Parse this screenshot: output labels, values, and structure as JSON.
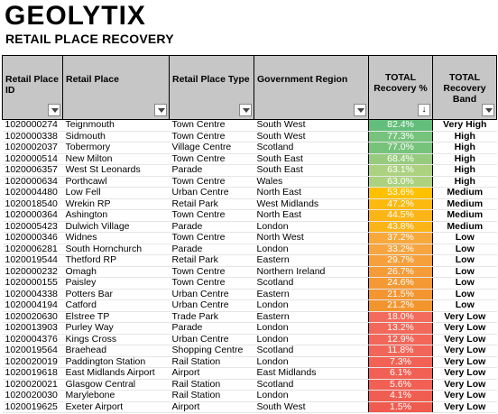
{
  "brand": {
    "logo_text": "GEOLYTIX"
  },
  "page": {
    "subtitle": "RETAIL PLACE RECOVERY"
  },
  "table": {
    "headers": [
      {
        "label": "Retail Place ID",
        "control": "filter"
      },
      {
        "label": "Retail Place",
        "control": "filter"
      },
      {
        "label": "Retail Place Type",
        "control": "filter"
      },
      {
        "label": "Government Region",
        "control": "filter"
      },
      {
        "label": "TOTAL Recovery %",
        "control": "sort-desc"
      },
      {
        "label": "TOTAL Recovery Band",
        "control": "filter"
      }
    ],
    "rows": [
      {
        "id": "1020000274",
        "place": "Teignmouth",
        "type": "Town Centre",
        "region": "South West",
        "pct": "82.4%",
        "band": "Very High",
        "color": "#63be7b"
      },
      {
        "id": "1020000338",
        "place": "Sidmouth",
        "type": "Town Centre",
        "region": "South West",
        "pct": "77.3%",
        "band": "High",
        "color": "#75c37c"
      },
      {
        "id": "1020002037",
        "place": "Tobermory",
        "type": "Village Centre",
        "region": "Scotland",
        "pct": "77.0%",
        "band": "High",
        "color": "#76c37c"
      },
      {
        "id": "1020000514",
        "place": "New Milton",
        "type": "Town Centre",
        "region": "South East",
        "pct": "68.4%",
        "band": "High",
        "color": "#97cc7e"
      },
      {
        "id": "1020006357",
        "place": "West St Leonards",
        "type": "Parade",
        "region": "South East",
        "pct": "63.1%",
        "band": "High",
        "color": "#acd27f"
      },
      {
        "id": "1020000634",
        "place": "Porthcawl",
        "type": "Town Centre",
        "region": "Wales",
        "pct": "63.0%",
        "band": "High",
        "color": "#acd27f"
      },
      {
        "id": "1020004480",
        "place": "Low Fell",
        "type": "Urban Centre",
        "region": "North East",
        "pct": "53.6%",
        "band": "Medium",
        "color": "#ffc000"
      },
      {
        "id": "1020018540",
        "place": "Wrekin RP",
        "type": "Retail Park",
        "region": "West Midlands",
        "pct": "47.2%",
        "band": "Medium",
        "color": "#fcb910"
      },
      {
        "id": "1020000364",
        "place": "Ashington",
        "type": "Town Centre",
        "region": "North East",
        "pct": "44.5%",
        "band": "Medium",
        "color": "#fbb516"
      },
      {
        "id": "1020005423",
        "place": "Dulwich Village",
        "type": "Parade",
        "region": "London",
        "pct": "43.8%",
        "band": "Medium",
        "color": "#fbb418"
      },
      {
        "id": "1020000346",
        "place": "Widnes",
        "type": "Town Centre",
        "region": "North West",
        "pct": "37.2%",
        "band": "Low",
        "color": "#f8a93c"
      },
      {
        "id": "1020006281",
        "place": "South Hornchurch",
        "type": "Parade",
        "region": "London",
        "pct": "33.2%",
        "band": "Low",
        "color": "#f7a540"
      },
      {
        "id": "1020019544",
        "place": "Thetford RP",
        "type": "Retail Park",
        "region": "Eastern",
        "pct": "29.7%",
        "band": "Low",
        "color": "#f6a03c"
      },
      {
        "id": "1020000232",
        "place": "Omagh",
        "type": "Town Centre",
        "region": "Northern Ireland",
        "pct": "26.7%",
        "band": "Low",
        "color": "#f59b38"
      },
      {
        "id": "1020000155",
        "place": "Paisley",
        "type": "Town Centre",
        "region": "Scotland",
        "pct": "24.6%",
        "band": "Low",
        "color": "#f49934"
      },
      {
        "id": "1020004338",
        "place": "Potters Bar",
        "type": "Urban Centre",
        "region": "Eastern",
        "pct": "21.5%",
        "band": "Low",
        "color": "#f39530"
      },
      {
        "id": "1020004194",
        "place": "Catford",
        "type": "Urban Centre",
        "region": "London",
        "pct": "21.2%",
        "band": "Low",
        "color": "#f3952f"
      },
      {
        "id": "1020020630",
        "place": "Elstree TP",
        "type": "Trade Park",
        "region": "Eastern",
        "pct": "18.0%",
        "band": "Very Low",
        "color": "#f26b5c"
      },
      {
        "id": "1020013903",
        "place": "Purley Way",
        "type": "Parade",
        "region": "London",
        "pct": "13.2%",
        "band": "Very Low",
        "color": "#f2685a"
      },
      {
        "id": "1020004376",
        "place": "Kings Cross",
        "type": "Urban Centre",
        "region": "London",
        "pct": "12.9%",
        "band": "Very Low",
        "color": "#f26759"
      },
      {
        "id": "1020019564",
        "place": "Braehead",
        "type": "Shopping Centre",
        "region": "Scotland",
        "pct": "11.8%",
        "band": "Very Low",
        "color": "#f26659"
      },
      {
        "id": "1020020019",
        "place": "Paddington Station",
        "type": "Rail Station",
        "region": "London",
        "pct": "7.3%",
        "band": "Very Low",
        "color": "#f16255"
      },
      {
        "id": "1020019618",
        "place": "East Midlands Airport",
        "type": "Airport",
        "region": "East Midlands",
        "pct": "6.1%",
        "band": "Very Low",
        "color": "#f16054"
      },
      {
        "id": "1020020021",
        "place": "Glasgow Central",
        "type": "Rail Station",
        "region": "Scotland",
        "pct": "5.6%",
        "band": "Very Low",
        "color": "#f16053"
      },
      {
        "id": "1020020030",
        "place": "Marylebone",
        "type": "Rail Station",
        "region": "London",
        "pct": "4.1%",
        "band": "Very Low",
        "color": "#f05e52"
      },
      {
        "id": "1020019625",
        "place": "Exeter Airport",
        "type": "Airport",
        "region": "South West",
        "pct": "1.5%",
        "band": "Very Low",
        "color": "#f05b50"
      }
    ]
  }
}
